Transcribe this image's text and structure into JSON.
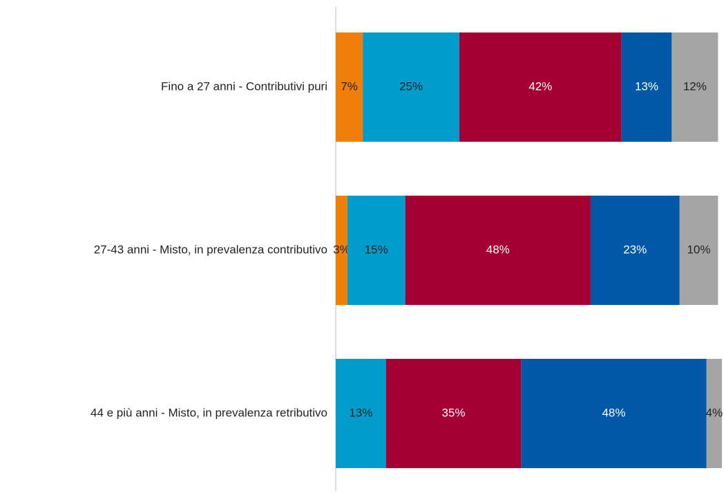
{
  "chart_data": {
    "type": "stacked-bar-horizontal",
    "categories": [
      "Fino a 27 anni - Contributivi puri",
      "27-43 anni - Misto, in prevalenza contributivo",
      "44 e più anni - Misto, in prevalenza retributivo"
    ],
    "xlim": [
      0,
      100
    ],
    "series": [
      {
        "color": "#f07f09",
        "label_color": "#222222",
        "values": [
          7,
          3,
          null
        ],
        "value_labels": [
          "7%",
          "3%",
          null
        ]
      },
      {
        "color": "#009ccc",
        "label_color": "#222222",
        "values": [
          25,
          15,
          13
        ],
        "value_labels": [
          "25%",
          "15%",
          "13%"
        ]
      },
      {
        "color": "#a50034",
        "label_color": "#ffffff",
        "values": [
          42,
          48,
          35
        ],
        "value_labels": [
          "42%",
          "48%",
          "35%"
        ]
      },
      {
        "color": "#0058a6",
        "label_color": "#ffffff",
        "values": [
          13,
          23,
          48
        ],
        "value_labels": [
          "13%",
          "23%",
          "48%"
        ]
      },
      {
        "color": "#a5a5a5",
        "label_color": "#222222",
        "values": [
          12,
          10,
          4
        ],
        "value_labels": [
          "12%",
          "10%",
          "4%"
        ]
      }
    ]
  }
}
